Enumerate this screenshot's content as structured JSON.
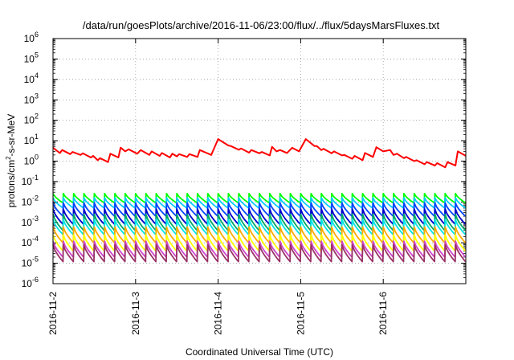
{
  "chart_data": {
    "type": "line",
    "title": "/data/run/goesPlots/archive/2016-11-06/23:00/flux/../flux/5daysMarsFluxes.txt",
    "xlabel": "Coordinated Universal Time (UTC)",
    "ylabel": {
      "pre": "protons/cm",
      "sup": "2",
      "post": "-s-sr-MeV"
    },
    "y_scale": "log",
    "ylim": [
      1e-06,
      1000000.0
    ],
    "y_ticks": [
      {
        "exp": "-6",
        "value": 1e-06
      },
      {
        "exp": "-5",
        "value": 1e-05
      },
      {
        "exp": "-4",
        "value": 0.0001
      },
      {
        "exp": "-3",
        "value": 0.001
      },
      {
        "exp": "-2",
        "value": 0.01
      },
      {
        "exp": "-1",
        "value": 0.1
      },
      {
        "exp": "0",
        "value": 1
      },
      {
        "exp": "1",
        "value": 10
      },
      {
        "exp": "2",
        "value": 100
      },
      {
        "exp": "3",
        "value": 1000
      },
      {
        "exp": "4",
        "value": 10000
      },
      {
        "exp": "5",
        "value": 100000
      },
      {
        "exp": "6",
        "value": 1000000
      }
    ],
    "x_ticks": [
      "2016-11-2",
      "2016-11-3",
      "2016-11-4",
      "2016-11-5",
      "2016-11-6"
    ],
    "xlim": [
      "2016-11-02",
      "2016-11-07"
    ],
    "grid": true,
    "legend": "none",
    "series": [
      {
        "color": "#ff0000",
        "x": [
          "2016-11-02T00:00",
          "2016-11-02T02:00",
          "2016-11-02T02:40",
          "2016-11-02T05:00",
          "2016-11-02T05:40",
          "2016-11-02T08:00",
          "2016-11-02T08:40",
          "2016-11-02T11:00",
          "2016-11-02T11:40",
          "2016-11-02T13:00",
          "2016-11-02T13:40",
          "2016-11-02T16:00",
          "2016-11-02T16:40",
          "2016-11-02T19:00",
          "2016-11-02T19:40",
          "2016-11-02T21:00",
          "2016-11-02T22:00",
          "2016-11-03T00:30",
          "2016-11-03T01:30",
          "2016-11-03T04:00",
          "2016-11-03T04:40",
          "2016-11-03T07:00",
          "2016-11-03T07:40",
          "2016-11-03T10:00",
          "2016-11-03T10:40",
          "2016-11-03T12:00",
          "2016-11-03T12:40",
          "2016-11-03T15:00",
          "2016-11-03T15:40",
          "2016-11-03T18:00",
          "2016-11-03T18:40",
          "2016-11-03T22:00",
          "2016-11-04T00:00",
          "2016-11-04T03:00",
          "2016-11-04T03:40",
          "2016-11-04T06:00",
          "2016-11-04T06:40",
          "2016-11-04T09:00",
          "2016-11-04T09:40",
          "2016-11-04T12:00",
          "2016-11-04T12:40",
          "2016-11-04T15:00",
          "2016-11-04T15:40",
          "2016-11-04T17:00",
          "2016-11-04T18:00",
          "2016-11-04T20:00",
          "2016-11-04T21:30",
          "2016-11-04T23:30",
          "2016-11-05T01:30",
          "2016-11-05T04:00",
          "2016-11-05T04:40",
          "2016-11-05T06:00",
          "2016-11-05T06:40",
          "2016-11-05T09:00",
          "2016-11-05T09:40",
          "2016-11-05T12:00",
          "2016-11-05T12:40",
          "2016-11-05T15:00",
          "2016-11-05T15:40",
          "2016-11-05T18:00",
          "2016-11-05T18:40",
          "2016-11-05T21:00",
          "2016-11-05T22:00",
          "2016-11-06T00:00",
          "2016-11-06T02:00",
          "2016-11-06T03:00",
          "2016-11-06T04:00",
          "2016-11-06T06:00",
          "2016-11-06T06:40",
          "2016-11-06T09:00",
          "2016-11-06T09:40",
          "2016-11-06T12:00",
          "2016-11-06T12:40",
          "2016-11-06T15:00",
          "2016-11-06T15:40",
          "2016-11-06T18:00",
          "2016-11-06T18:40",
          "2016-11-06T21:00",
          "2016-11-06T21:40",
          "2016-11-06T24:00"
        ],
        "y": [
          4.5,
          2.5,
          3.5,
          2.2,
          2.8,
          2.0,
          2.4,
          1.5,
          1.8,
          1.1,
          1.4,
          0.9,
          2.3,
          1.5,
          4.6,
          3.0,
          3.8,
          2.3,
          3.5,
          2.0,
          3.0,
          1.8,
          2.5,
          1.5,
          2.3,
          1.7,
          2.2,
          1.6,
          2.2,
          1.6,
          3.5,
          2.0,
          12.0,
          5.8,
          5.5,
          3.6,
          4.2,
          2.6,
          3.5,
          2.4,
          2.8,
          1.9,
          5.0,
          3.0,
          3.5,
          2.5,
          4.5,
          3.0,
          12.0,
          5.5,
          5.5,
          3.5,
          4.0,
          2.4,
          3.0,
          1.9,
          2.0,
          1.3,
          1.8,
          1.1,
          2.5,
          1.6,
          4.8,
          3.0,
          3.5,
          2.0,
          2.3,
          1.4,
          1.6,
          1.0,
          1.1,
          0.7,
          0.9,
          0.6,
          0.8,
          0.5,
          0.9,
          0.6,
          3.0,
          1.8
        ]
      },
      {
        "color": "#00ff00",
        "base": 0.026,
        "min": 0.009,
        "period_hours": 3
      },
      {
        "color": "#00ccff",
        "base": 0.016,
        "min": 0.005,
        "period_hours": 3
      },
      {
        "color": "#0044ff",
        "base": 0.009,
        "min": 0.002,
        "period_hours": 3
      },
      {
        "color": "#0000cc",
        "base": 0.0045,
        "min": 0.0008,
        "period_hours": 3
      },
      {
        "color": "#00aa66",
        "base": 0.0025,
        "min": 0.0004,
        "period_hours": 3
      },
      {
        "color": "#00e5e5",
        "base": 0.0014,
        "min": 0.00025,
        "period_hours": 3
      },
      {
        "color": "#ffaa00",
        "base": 0.0006,
        "min": 0.0001,
        "period_hours": 3
      },
      {
        "color": "#ffff00",
        "base": 0.00025,
        "min": 4e-05,
        "period_hours": 3
      },
      {
        "color": "#cc44cc",
        "base": 0.00012,
        "min": 2e-05,
        "period_hours": 3
      },
      {
        "color": "#993366",
        "base": 8e-05,
        "min": 1.2e-05,
        "period_hours": 3
      }
    ]
  }
}
